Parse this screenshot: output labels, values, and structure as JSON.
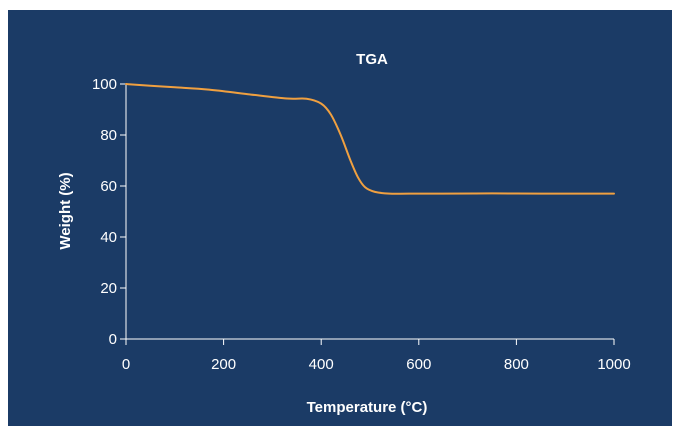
{
  "chart_data": {
    "type": "line",
    "title": "TGA",
    "xlabel": "Temperature (°C)",
    "ylabel": "Weight (%)",
    "xlim": [
      0,
      1000
    ],
    "ylim": [
      0,
      100
    ],
    "x_ticks": [
      0,
      200,
      400,
      600,
      800,
      1000
    ],
    "y_ticks": [
      0,
      20,
      40,
      60,
      80,
      100
    ],
    "grid": false,
    "line_color": "#f0a040",
    "background_color": "#1b3b66",
    "series": [
      {
        "x": [
          0,
          50,
          100,
          170,
          250,
          330,
          370,
          400,
          420,
          440,
          460,
          475,
          490,
          510,
          540,
          580,
          650,
          750,
          850,
          950,
          1000
        ],
        "values": [
          100,
          99.3,
          98.7,
          97.8,
          96.0,
          94.3,
          94.2,
          92.3,
          88.0,
          80.0,
          70.0,
          63.5,
          59.5,
          57.7,
          57.0,
          57.0,
          57.0,
          57.1,
          57.0,
          57.0,
          57.0
        ]
      }
    ]
  }
}
